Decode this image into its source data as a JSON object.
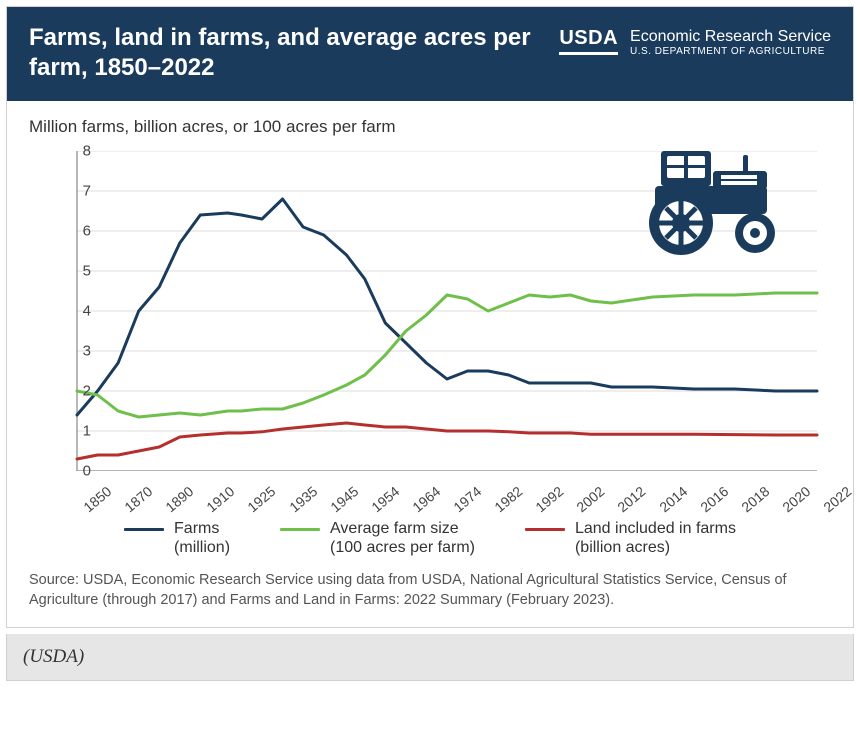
{
  "header": {
    "title": "Farms, land in farms, and average acres per farm, 1850–2022",
    "logo_mark": "USDA",
    "logo_title": "Economic Research Service",
    "logo_sub": "U.S. DEPARTMENT OF AGRICULTURE",
    "bg_color": "#1a3b5c",
    "text_color": "#ffffff"
  },
  "chart": {
    "type": "line",
    "y_axis_label": "Million farms, billion acres, or 100 acres per farm",
    "xlim": [
      1850,
      2022
    ],
    "ylim": [
      0,
      8
    ],
    "ytick_step": 1,
    "yticks": [
      0,
      1,
      2,
      3,
      4,
      5,
      6,
      7,
      8
    ],
    "xticks": [
      1850,
      1870,
      1890,
      1910,
      1925,
      1935,
      1945,
      1954,
      1964,
      1974,
      1982,
      1992,
      2002,
      2012,
      2014,
      2016,
      2018,
      2020,
      2022
    ],
    "plot_bg": "#ffffff",
    "axis_color": "#888888",
    "grid_color": "#dddddd",
    "grid": true,
    "label_fontsize": 17,
    "tick_fontsize": 14,
    "line_width": 3,
    "series": [
      {
        "name": "Farms (million)",
        "color": "#1a3b5c",
        "x": [
          1850,
          1860,
          1870,
          1880,
          1890,
          1900,
          1910,
          1920,
          1925,
          1930,
          1935,
          1940,
          1945,
          1950,
          1954,
          1959,
          1964,
          1969,
          1974,
          1978,
          1982,
          1987,
          1992,
          1997,
          2002,
          2007,
          2012,
          2014,
          2016,
          2018,
          2020,
          2022
        ],
        "y": [
          1.4,
          2.0,
          2.7,
          4.0,
          4.6,
          5.7,
          6.4,
          6.45,
          6.4,
          6.3,
          6.8,
          6.1,
          5.9,
          5.4,
          4.8,
          3.7,
          3.2,
          2.7,
          2.3,
          2.5,
          2.5,
          2.4,
          2.2,
          2.2,
          2.2,
          2.2,
          2.1,
          2.1,
          2.05,
          2.05,
          2.0,
          2.0
        ]
      },
      {
        "name": "Average farm size (100 acres per farm)",
        "color": "#6fbf4b",
        "x": [
          1850,
          1860,
          1870,
          1880,
          1890,
          1900,
          1910,
          1920,
          1925,
          1930,
          1935,
          1940,
          1945,
          1950,
          1954,
          1959,
          1964,
          1969,
          1974,
          1978,
          1982,
          1987,
          1992,
          1997,
          2002,
          2007,
          2012,
          2014,
          2016,
          2018,
          2020,
          2022
        ],
        "y": [
          2.0,
          1.9,
          1.5,
          1.35,
          1.4,
          1.45,
          1.4,
          1.5,
          1.5,
          1.55,
          1.55,
          1.7,
          1.9,
          2.15,
          2.4,
          2.9,
          3.5,
          3.9,
          4.4,
          4.3,
          4.0,
          4.2,
          4.4,
          4.35,
          4.4,
          4.25,
          4.2,
          4.35,
          4.4,
          4.4,
          4.45,
          4.45
        ]
      },
      {
        "name": "Land included in farms (billion acres)",
        "color": "#b52f2f",
        "x": [
          1850,
          1860,
          1870,
          1880,
          1890,
          1900,
          1910,
          1920,
          1925,
          1930,
          1935,
          1940,
          1945,
          1950,
          1954,
          1959,
          1964,
          1969,
          1974,
          1978,
          1982,
          1987,
          1992,
          1997,
          2002,
          2007,
          2012,
          2014,
          2016,
          2018,
          2020,
          2022
        ],
        "y": [
          0.3,
          0.4,
          0.4,
          0.5,
          0.6,
          0.85,
          0.9,
          0.95,
          0.95,
          0.98,
          1.05,
          1.1,
          1.15,
          1.2,
          1.15,
          1.1,
          1.1,
          1.05,
          1.0,
          1.0,
          1.0,
          0.98,
          0.95,
          0.95,
          0.95,
          0.92,
          0.92,
          0.92,
          0.92,
          0.91,
          0.9,
          0.9
        ]
      }
    ],
    "tractor_color": "#1a3b5c"
  },
  "legend": {
    "items": [
      {
        "label_l1": "Farms",
        "label_l2": "(million)",
        "color": "#1a3b5c"
      },
      {
        "label_l1": "Average farm size",
        "label_l2": "(100 acres per farm)",
        "color": "#6fbf4b"
      },
      {
        "label_l1": "Land included in farms",
        "label_l2": "(billion acres)",
        "color": "#b52f2f"
      }
    ]
  },
  "source_note": "Source: USDA, Economic Research Service using data from USDA, National Agricultural Statistics Service, Census of Agriculture (through 2017) and Farms and Land in Farms: 2022 Summary (February 2023).",
  "caption": "(USDA)"
}
